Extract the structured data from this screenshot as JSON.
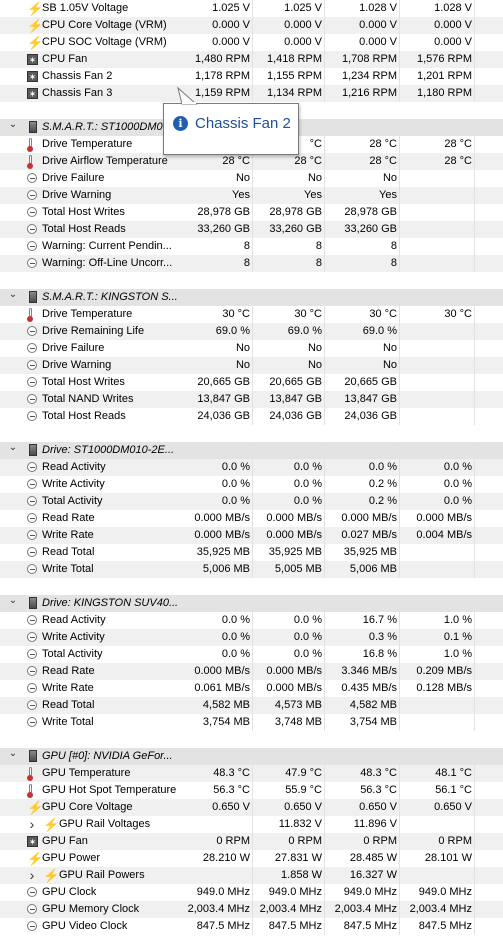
{
  "rows": [
    {
      "type": "sensor",
      "icon": "bolt",
      "label": "SB 1.05V Voltage",
      "values": [
        "1.025 V",
        "1.025 V",
        "1.028 V",
        "1.028 V"
      ]
    },
    {
      "type": "sensor",
      "icon": "bolt",
      "label": "CPU Core Voltage (VRM)",
      "values": [
        "0.000 V",
        "0.000 V",
        "0.000 V",
        "0.000 V"
      ]
    },
    {
      "type": "sensor",
      "icon": "bolt",
      "label": "CPU SOC Voltage (VRM)",
      "values": [
        "0.000 V",
        "0.000 V",
        "0.000 V",
        "0.000 V"
      ]
    },
    {
      "type": "sensor",
      "icon": "fan",
      "label": "CPU Fan",
      "values": [
        "1,480 RPM",
        "1,418 RPM",
        "1,708 RPM",
        "1,576 RPM"
      ]
    },
    {
      "type": "sensor",
      "icon": "fan",
      "label": "Chassis Fan 2",
      "values": [
        "1,178 RPM",
        "1,155 RPM",
        "1,234 RPM",
        "1,201 RPM"
      ]
    },
    {
      "type": "sensor",
      "icon": "fan",
      "label": "Chassis Fan 3",
      "values": [
        "1,159 RPM",
        "1,134 RPM",
        "1,216 RPM",
        "1,180 RPM"
      ]
    },
    {
      "type": "blank"
    },
    {
      "type": "header",
      "label": "S.M.A.R.T.: ST1000DM0"
    },
    {
      "type": "sensor",
      "icon": "therm",
      "label": "Drive Temperature",
      "values": [
        "",
        "°C",
        "28 °C",
        "28 °C"
      ]
    },
    {
      "type": "sensor",
      "icon": "therm",
      "label": "Drive Airflow Temperature",
      "values": [
        "28 °C",
        "28 °C",
        "28 °C",
        "28 °C"
      ]
    },
    {
      "type": "sensor",
      "icon": "gauge",
      "label": "Drive Failure",
      "values": [
        "No",
        "No",
        "No",
        ""
      ]
    },
    {
      "type": "sensor",
      "icon": "gauge",
      "label": "Drive Warning",
      "values": [
        "Yes",
        "Yes",
        "Yes",
        ""
      ]
    },
    {
      "type": "sensor",
      "icon": "gauge",
      "label": "Total Host Writes",
      "values": [
        "28,978 GB",
        "28,978 GB",
        "28,978 GB",
        ""
      ]
    },
    {
      "type": "sensor",
      "icon": "gauge",
      "label": "Total Host Reads",
      "values": [
        "33,260 GB",
        "33,260 GB",
        "33,260 GB",
        ""
      ]
    },
    {
      "type": "sensor",
      "icon": "gauge",
      "label": "Warning: Current Pendin...",
      "values": [
        "8",
        "8",
        "8",
        ""
      ]
    },
    {
      "type": "sensor",
      "icon": "gauge",
      "label": "Warning: Off-Line Uncorr...",
      "values": [
        "8",
        "8",
        "8",
        ""
      ]
    },
    {
      "type": "blank"
    },
    {
      "type": "header",
      "label": "S.M.A.R.T.: KINGSTON S..."
    },
    {
      "type": "sensor",
      "icon": "therm",
      "label": "Drive Temperature",
      "values": [
        "30 °C",
        "30 °C",
        "30 °C",
        "30 °C"
      ]
    },
    {
      "type": "sensor",
      "icon": "gauge",
      "label": "Drive Remaining Life",
      "values": [
        "69.0 %",
        "69.0 %",
        "69.0 %",
        ""
      ]
    },
    {
      "type": "sensor",
      "icon": "gauge",
      "label": "Drive Failure",
      "values": [
        "No",
        "No",
        "No",
        ""
      ]
    },
    {
      "type": "sensor",
      "icon": "gauge",
      "label": "Drive Warning",
      "values": [
        "No",
        "No",
        "No",
        ""
      ]
    },
    {
      "type": "sensor",
      "icon": "gauge",
      "label": "Total Host Writes",
      "values": [
        "20,665 GB",
        "20,665 GB",
        "20,665 GB",
        ""
      ]
    },
    {
      "type": "sensor",
      "icon": "gauge",
      "label": "Total NAND Writes",
      "values": [
        "13,847 GB",
        "13,847 GB",
        "13,847 GB",
        ""
      ]
    },
    {
      "type": "sensor",
      "icon": "gauge",
      "label": "Total Host Reads",
      "values": [
        "24,036 GB",
        "24,036 GB",
        "24,036 GB",
        ""
      ]
    },
    {
      "type": "blank"
    },
    {
      "type": "header",
      "label": "Drive: ST1000DM010-2E..."
    },
    {
      "type": "sensor",
      "icon": "gauge",
      "label": "Read Activity",
      "values": [
        "0.0 %",
        "0.0 %",
        "0.0 %",
        "0.0 %"
      ]
    },
    {
      "type": "sensor",
      "icon": "gauge",
      "label": "Write Activity",
      "values": [
        "0.0 %",
        "0.0 %",
        "0.2 %",
        "0.0 %"
      ]
    },
    {
      "type": "sensor",
      "icon": "gauge",
      "label": "Total Activity",
      "values": [
        "0.0 %",
        "0.0 %",
        "0.2 %",
        "0.0 %"
      ]
    },
    {
      "type": "sensor",
      "icon": "gauge",
      "label": "Read Rate",
      "values": [
        "0.000 MB/s",
        "0.000 MB/s",
        "0.000 MB/s",
        "0.000 MB/s"
      ]
    },
    {
      "type": "sensor",
      "icon": "gauge",
      "label": "Write Rate",
      "values": [
        "0.000 MB/s",
        "0.000 MB/s",
        "0.027 MB/s",
        "0.004 MB/s"
      ]
    },
    {
      "type": "sensor",
      "icon": "gauge",
      "label": "Read Total",
      "values": [
        "35,925 MB",
        "35,925 MB",
        "35,925 MB",
        ""
      ]
    },
    {
      "type": "sensor",
      "icon": "gauge",
      "label": "Write Total",
      "values": [
        "5,006 MB",
        "5,005 MB",
        "5,006 MB",
        ""
      ]
    },
    {
      "type": "blank"
    },
    {
      "type": "header",
      "label": "Drive: KINGSTON SUV40..."
    },
    {
      "type": "sensor",
      "icon": "gauge",
      "label": "Read Activity",
      "values": [
        "0.0 %",
        "0.0 %",
        "16.7 %",
        "1.0 %"
      ]
    },
    {
      "type": "sensor",
      "icon": "gauge",
      "label": "Write Activity",
      "values": [
        "0.0 %",
        "0.0 %",
        "0.3 %",
        "0.1 %"
      ]
    },
    {
      "type": "sensor",
      "icon": "gauge",
      "label": "Total Activity",
      "values": [
        "0.0 %",
        "0.0 %",
        "16.8 %",
        "1.0 %"
      ]
    },
    {
      "type": "sensor",
      "icon": "gauge",
      "label": "Read Rate",
      "values": [
        "0.000 MB/s",
        "0.000 MB/s",
        "3.346 MB/s",
        "0.209 MB/s"
      ]
    },
    {
      "type": "sensor",
      "icon": "gauge",
      "label": "Write Rate",
      "values": [
        "0.061 MB/s",
        "0.000 MB/s",
        "0.435 MB/s",
        "0.128 MB/s"
      ]
    },
    {
      "type": "sensor",
      "icon": "gauge",
      "label": "Read Total",
      "values": [
        "4,582 MB",
        "4,573 MB",
        "4,582 MB",
        ""
      ]
    },
    {
      "type": "sensor",
      "icon": "gauge",
      "label": "Write Total",
      "values": [
        "3,754 MB",
        "3,748 MB",
        "3,754 MB",
        ""
      ]
    },
    {
      "type": "blank"
    },
    {
      "type": "header",
      "label": "GPU [#0]: NVIDIA GeFor..."
    },
    {
      "type": "sensor",
      "icon": "therm",
      "label": "GPU Temperature",
      "values": [
        "48.3 °C",
        "47.9 °C",
        "48.3 °C",
        "48.1 °C"
      ]
    },
    {
      "type": "sensor",
      "icon": "therm",
      "label": "GPU Hot Spot Temperature",
      "values": [
        "56.3 °C",
        "55.9 °C",
        "56.3 °C",
        "56.1 °C"
      ]
    },
    {
      "type": "sensor",
      "icon": "bolt",
      "label": "GPU Core Voltage",
      "values": [
        "0.650 V",
        "0.650 V",
        "0.650 V",
        "0.650 V"
      ]
    },
    {
      "type": "sub",
      "icon": "bolt",
      "label": "GPU Rail Voltages",
      "values": [
        "",
        "11.832 V",
        "11.896 V",
        ""
      ]
    },
    {
      "type": "sensor",
      "icon": "fan",
      "label": "GPU Fan",
      "values": [
        "0 RPM",
        "0 RPM",
        "0 RPM",
        "0 RPM"
      ]
    },
    {
      "type": "sensor",
      "icon": "bolt",
      "label": "GPU Power",
      "values": [
        "28.210 W",
        "27.831 W",
        "28.485 W",
        "28.101 W"
      ]
    },
    {
      "type": "sub",
      "icon": "bolt",
      "label": "GPU Rail Powers",
      "values": [
        "",
        "1.858 W",
        "16.327 W",
        ""
      ]
    },
    {
      "type": "sensor",
      "icon": "gauge",
      "label": "GPU Clock",
      "values": [
        "949.0 MHz",
        "949.0 MHz",
        "949.0 MHz",
        "949.0 MHz"
      ]
    },
    {
      "type": "sensor",
      "icon": "gauge",
      "label": "GPU Memory Clock",
      "values": [
        "2,003.4 MHz",
        "2,003.4 MHz",
        "2,003.4 MHz",
        "2,003.4 MHz"
      ]
    },
    {
      "type": "sensor",
      "icon": "gauge",
      "label": "GPU Video Clock",
      "values": [
        "847.5 MHz",
        "847.5 MHz",
        "847.5 MHz",
        "847.5 MHz"
      ]
    }
  ],
  "tooltip": {
    "icon": "info-icon",
    "text": "Chassis Fan 2"
  },
  "colors": {
    "header_bg": "#e3e3e3",
    "alt_bg": "#f0f0f0",
    "tooltip_text": "#1e4f9c",
    "info_icon": "#1e5fb3"
  }
}
